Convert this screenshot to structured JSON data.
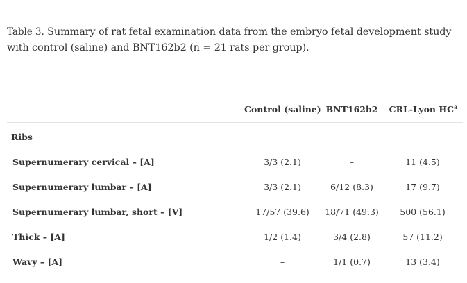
{
  "caption": {
    "label": "Table 3.",
    "text": " Summary of rat fetal examination data from the embryo fetal development study with control (saline) and BNT162b2 (n = 21 rats per group)."
  },
  "table": {
    "columns": [
      "Control (saline)",
      "BNT162b2",
      "CRL-Lyon HC"
    ],
    "column_footnote": "a",
    "section": "Ribs",
    "rows": [
      {
        "label": "Supernumerary cervical – [A]",
        "values": [
          "3/3 (2.1)",
          "–",
          "11 (4.5)"
        ]
      },
      {
        "label": "Supernumerary lumbar – [A]",
        "values": [
          "3/3 (2.1)",
          "6/12 (8.3)",
          "17 (9.7)"
        ]
      },
      {
        "label": "Supernumerary lumbar, short – [V]",
        "values": [
          "17/57 (39.6)",
          "18/71 (49.3)",
          "500 (56.1)"
        ]
      },
      {
        "label": "Thick – [A]",
        "values": [
          "1/2 (1.4)",
          "3/4 (2.8)",
          "57 (11.2)"
        ]
      },
      {
        "label": "Wavy – [A]",
        "values": [
          "–",
          "1/1 (0.7)",
          "13 (3.4)"
        ]
      }
    ]
  }
}
